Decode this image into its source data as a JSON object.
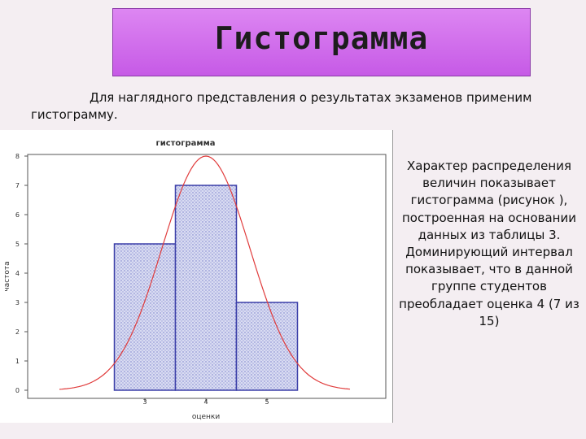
{
  "slide": {
    "title": "Гистограмма",
    "intro": "Для наглядного представления о результатах экзаменов применим гистограмму.",
    "side_text": "Характер распределения величин показывает гистограмма (рисунок ), построенная на основании данных из таблицы 3. Доминирующий интервал показывает, что в данной группе студентов преобладает оценка 4 (7 из 15)"
  },
  "colors": {
    "title_bg": "#cf6aec",
    "bar_fill": "#d6d9f2",
    "bar_stroke": "#3b3fa8",
    "curve": "#e03b3b"
  },
  "chart_data": {
    "type": "bar",
    "title": "гистограмма",
    "xlabel": "оценки",
    "ylabel": "частота",
    "categories": [
      "3",
      "4",
      "5"
    ],
    "values": [
      5,
      7,
      3
    ],
    "ylim": [
      0,
      8
    ],
    "yticks": [
      "0",
      "1",
      "2",
      "3",
      "4",
      "5",
      "6",
      "7",
      "8"
    ],
    "grid": false,
    "overlay": "normal-curve"
  }
}
